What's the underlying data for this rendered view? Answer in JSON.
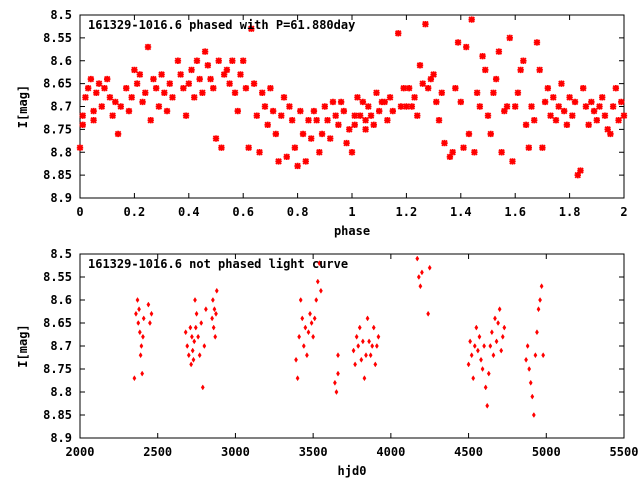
{
  "chart_data": [
    {
      "type": "scatter",
      "title": "161329-1016.6 phased with P=61.880day",
      "xlabel": "phase",
      "ylabel": "I[mag]",
      "xlim": [
        0,
        2
      ],
      "ylim": [
        8.9,
        8.5
      ],
      "y_inverted": true,
      "x_ticks": [
        "0",
        "0.2",
        "0.4",
        "0.6",
        "0.8",
        "1",
        "1.2",
        "1.4",
        "1.6",
        "1.8",
        "2"
      ],
      "x_tick_values": [
        0,
        0.2,
        0.4,
        0.6,
        0.8,
        1.0,
        1.2,
        1.4,
        1.6,
        1.8,
        2.0
      ],
      "y_ticks": [
        "8.5",
        "8.55",
        "8.6",
        "8.65",
        "8.7",
        "8.75",
        "8.8",
        "8.85",
        "8.9"
      ],
      "y_tick_values": [
        8.5,
        8.55,
        8.6,
        8.65,
        8.7,
        8.75,
        8.8,
        8.85,
        8.9
      ],
      "marker_color": "#ff0000",
      "series": [
        {
          "x": [
            0.0,
            0.01,
            0.01,
            0.02,
            0.03,
            0.04,
            0.05,
            0.05,
            0.06,
            0.07,
            0.08,
            0.09,
            0.1,
            0.11,
            0.12,
            0.13,
            0.14,
            0.15,
            0.17,
            0.18,
            0.19,
            0.2,
            0.21,
            0.22,
            0.23,
            0.24,
            0.25,
            0.26,
            0.27,
            0.28,
            0.29,
            0.3,
            0.31,
            0.32,
            0.33,
            0.34,
            0.36,
            0.37,
            0.38,
            0.39,
            0.4,
            0.41,
            0.42,
            0.43,
            0.44,
            0.45,
            0.46,
            0.47,
            0.48,
            0.49,
            0.5,
            0.51,
            0.52,
            0.53,
            0.54,
            0.55,
            0.56,
            0.57,
            0.58,
            0.59,
            0.6,
            0.61,
            0.62,
            0.63,
            0.64,
            0.65,
            0.66,
            0.67,
            0.68,
            0.69,
            0.7,
            0.71,
            0.72,
            0.73,
            0.74,
            0.75,
            0.76,
            0.77,
            0.78,
            0.79,
            0.8,
            0.81,
            0.82,
            0.83,
            0.84,
            0.85,
            0.86,
            0.87,
            0.88,
            0.89,
            0.9,
            0.91,
            0.92,
            0.93,
            0.94,
            0.95,
            0.96,
            0.97,
            0.98,
            0.99,
            1.0,
            1.01,
            1.01,
            1.02,
            1.03,
            1.04,
            1.05,
            1.05,
            1.06,
            1.07,
            1.08,
            1.09,
            1.1,
            1.11,
            1.12,
            1.13,
            1.14,
            1.15,
            1.17,
            1.18,
            1.19,
            1.2,
            1.21,
            1.22,
            1.23,
            1.24,
            1.25,
            1.26,
            1.27,
            1.28,
            1.29,
            1.3,
            1.31,
            1.32,
            1.33,
            1.34,
            1.36,
            1.37,
            1.38,
            1.39,
            1.4,
            1.41,
            1.42,
            1.43,
            1.44,
            1.45,
            1.46,
            1.47,
            1.48,
            1.49,
            1.5,
            1.51,
            1.52,
            1.53,
            1.54,
            1.55,
            1.56,
            1.57,
            1.58,
            1.59,
            1.6,
            1.61,
            1.62,
            1.63,
            1.64,
            1.65,
            1.66,
            1.67,
            1.68,
            1.69,
            1.7,
            1.71,
            1.72,
            1.73,
            1.74,
            1.75,
            1.76,
            1.77,
            1.78,
            1.79,
            1.8,
            1.81,
            1.82,
            1.83,
            1.84,
            1.85,
            1.86,
            1.87,
            1.88,
            1.89,
            1.9,
            1.91,
            1.92,
            1.93,
            1.94,
            1.95,
            1.96,
            1.97,
            1.98,
            1.99,
            2.0
          ],
          "y": [
            8.79,
            8.72,
            8.74,
            8.68,
            8.66,
            8.64,
            8.71,
            8.73,
            8.67,
            8.65,
            8.7,
            8.66,
            8.64,
            8.68,
            8.72,
            8.69,
            8.76,
            8.7,
            8.66,
            8.71,
            8.68,
            8.62,
            8.65,
            8.63,
            8.69,
            8.67,
            8.57,
            8.73,
            8.64,
            8.66,
            8.7,
            8.63,
            8.67,
            8.71,
            8.65,
            8.68,
            8.6,
            8.63,
            8.66,
            8.72,
            8.65,
            8.62,
            8.68,
            8.6,
            8.64,
            8.67,
            8.58,
            8.61,
            8.64,
            8.66,
            8.77,
            8.6,
            8.79,
            8.63,
            8.62,
            8.65,
            8.6,
            8.67,
            8.71,
            8.63,
            8.6,
            8.66,
            8.79,
            8.53,
            8.65,
            8.72,
            8.8,
            8.67,
            8.7,
            8.74,
            8.66,
            8.71,
            8.76,
            8.82,
            8.72,
            8.68,
            8.81,
            8.7,
            8.73,
            8.79,
            8.83,
            8.71,
            8.76,
            8.82,
            8.73,
            8.77,
            8.71,
            8.73,
            8.8,
            8.76,
            8.7,
            8.73,
            8.77,
            8.69,
            8.72,
            8.74,
            8.69,
            8.71,
            8.78,
            8.75,
            8.8,
            8.72,
            8.74,
            8.68,
            8.72,
            8.69,
            8.75,
            8.73,
            8.7,
            8.72,
            8.74,
            8.67,
            8.71,
            8.69,
            8.69,
            8.73,
            8.68,
            8.71,
            8.54,
            8.7,
            8.66,
            8.7,
            8.66,
            8.7,
            8.68,
            8.72,
            8.61,
            8.65,
            8.52,
            8.66,
            8.64,
            8.63,
            8.69,
            8.73,
            8.67,
            8.78,
            8.81,
            8.8,
            8.66,
            8.56,
            8.69,
            8.79,
            8.57,
            8.76,
            8.51,
            8.8,
            8.67,
            8.7,
            8.59,
            8.62,
            8.72,
            8.76,
            8.67,
            8.64,
            8.58,
            8.8,
            8.71,
            8.7,
            8.55,
            8.82,
            8.7,
            8.67,
            8.62,
            8.6,
            8.74,
            8.79,
            8.7,
            8.73,
            8.56,
            8.62,
            8.79,
            8.69,
            8.66,
            8.72,
            8.68,
            8.73,
            8.7,
            8.65,
            8.71,
            8.74,
            8.68,
            8.72,
            8.69,
            8.85,
            8.84,
            8.66,
            8.7,
            8.74,
            8.69,
            8.71,
            8.73,
            8.7,
            8.68,
            8.72,
            8.75,
            8.76,
            8.7,
            8.66,
            8.73,
            8.69,
            8.72
          ]
        }
      ]
    },
    {
      "type": "scatter",
      "title": "161329-1016.6 not phased light curve",
      "xlabel": "hjd0",
      "ylabel": "I[mag]",
      "xlim": [
        2000,
        5500
      ],
      "ylim": [
        8.9,
        8.5
      ],
      "y_inverted": true,
      "x_ticks": [
        "2000",
        "2500",
        "3000",
        "3500",
        "4000",
        "4500",
        "5000",
        "5500"
      ],
      "x_tick_values": [
        2000,
        2500,
        3000,
        3500,
        4000,
        4500,
        5000,
        5500
      ],
      "y_ticks": [
        "8.5",
        "8.55",
        "8.6",
        "8.65",
        "8.7",
        "8.75",
        "8.8",
        "8.85",
        "8.9"
      ],
      "y_tick_values": [
        8.5,
        8.55,
        8.6,
        8.65,
        8.7,
        8.75,
        8.8,
        8.85,
        8.9
      ],
      "marker_color": "#ff0000",
      "series": [
        {
          "x": [
            2350,
            2360,
            2370,
            2375,
            2380,
            2385,
            2390,
            2395,
            2400,
            2405,
            2410,
            2440,
            2450,
            2460,
            2680,
            2690,
            2700,
            2710,
            2715,
            2720,
            2725,
            2730,
            2735,
            2740,
            2745,
            2750,
            2760,
            2770,
            2780,
            2790,
            2800,
            2810,
            2850,
            2855,
            2860,
            2865,
            2870,
            2875,
            2880,
            3390,
            3400,
            3410,
            3420,
            3430,
            3440,
            3450,
            3460,
            3470,
            3480,
            3490,
            3500,
            3510,
            3520,
            3530,
            3540,
            3550,
            3640,
            3650,
            3660,
            3660,
            3760,
            3770,
            3780,
            3790,
            3800,
            3810,
            3820,
            3830,
            3840,
            3850,
            3860,
            3870,
            3880,
            3890,
            3900,
            3910,
            3920,
            4170,
            4180,
            4190,
            4200,
            4240,
            4250,
            4500,
            4510,
            4520,
            4530,
            4540,
            4550,
            4560,
            4570,
            4580,
            4590,
            4600,
            4610,
            4620,
            4630,
            4640,
            4650,
            4660,
            4670,
            4680,
            4690,
            4700,
            4710,
            4720,
            4730,
            4870,
            4880,
            4890,
            4900,
            4910,
            4920,
            4930,
            4940,
            4950,
            4960,
            4970,
            4980
          ],
          "y": [
            8.77,
            8.63,
            8.6,
            8.65,
            8.62,
            8.67,
            8.72,
            8.7,
            8.76,
            8.68,
            8.64,
            8.61,
            8.65,
            8.63,
            8.67,
            8.7,
            8.72,
            8.66,
            8.74,
            8.68,
            8.71,
            8.73,
            8.69,
            8.6,
            8.66,
            8.63,
            8.68,
            8.72,
            8.65,
            8.79,
            8.7,
            8.62,
            8.64,
            8.6,
            8.66,
            8.62,
            8.68,
            8.63,
            8.58,
            8.73,
            8.77,
            8.68,
            8.6,
            8.64,
            8.7,
            8.66,
            8.72,
            8.67,
            8.63,
            8.65,
            8.68,
            8.64,
            8.6,
            8.56,
            8.52,
            8.58,
            8.78,
            8.8,
            8.72,
            8.76,
            8.71,
            8.74,
            8.68,
            8.7,
            8.66,
            8.73,
            8.69,
            8.77,
            8.72,
            8.64,
            8.69,
            8.72,
            8.7,
            8.66,
            8.74,
            8.7,
            8.68,
            8.51,
            8.55,
            8.57,
            8.54,
            8.63,
            8.53,
            8.74,
            8.69,
            8.72,
            8.77,
            8.7,
            8.66,
            8.71,
            8.68,
            8.73,
            8.75,
            8.7,
            8.79,
            8.83,
            8.76,
            8.7,
            8.67,
            8.72,
            8.64,
            8.69,
            8.65,
            8.62,
            8.71,
            8.68,
            8.66,
            8.73,
            8.7,
            8.75,
            8.78,
            8.81,
            8.85,
            8.72,
            8.67,
            8.62,
            8.6,
            8.57,
            8.72
          ]
        }
      ]
    }
  ]
}
